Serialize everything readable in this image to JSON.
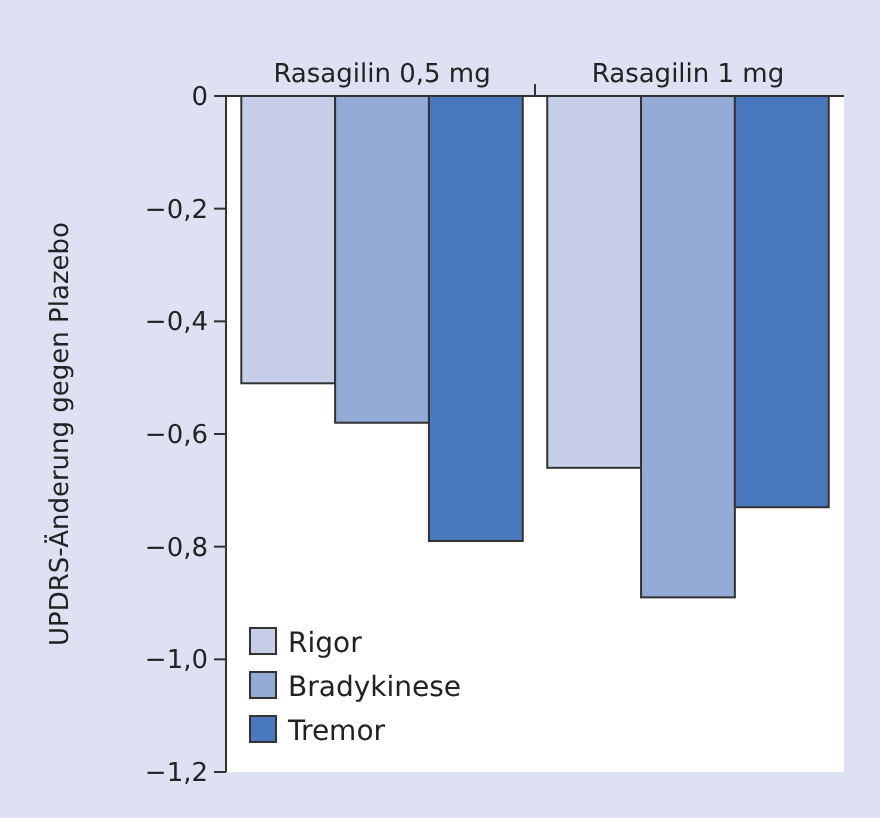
{
  "chart_data": {
    "type": "bar",
    "ylabel": "UPDRS-Änderung gegen Plazebo",
    "categories": [
      "Rasagilin 0,5 mg",
      "Rasagilin 1 mg"
    ],
    "series": [
      {
        "name": "Rigor",
        "color": "#c7cfe8",
        "values": [
          -0.51,
          -0.66
        ]
      },
      {
        "name": "Bradykinese",
        "color": "#93abd6",
        "values": [
          -0.58,
          -0.89
        ]
      },
      {
        "name": "Tremor",
        "color": "#4a78bd",
        "values": [
          -0.79,
          -0.73
        ]
      }
    ],
    "ylim": [
      -1.2,
      0
    ],
    "yticks": [
      0,
      {
        "value": -0.2,
        "label": "−0,2"
      },
      {
        "value": -0.4,
        "label": "−0,4"
      },
      {
        "value": -0.6,
        "label": "−0,6"
      },
      {
        "value": -0.8,
        "label": "−0,8"
      },
      {
        "value": -1.0,
        "label": "−1,0"
      },
      {
        "value": -1.2,
        "label": "−1,2"
      }
    ],
    "grid": false,
    "legend": "bottom left"
  }
}
